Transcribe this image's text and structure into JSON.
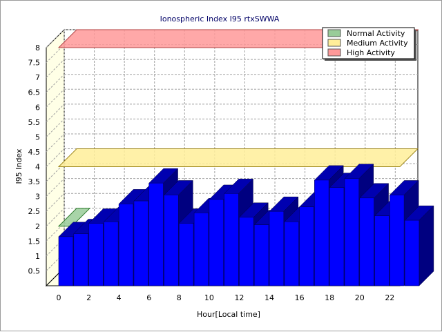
{
  "chart_data": {
    "type": "bar",
    "title": "Ionospheric Index I95 rtxSWWA",
    "xlabel": "Hour[Local time]",
    "ylabel": "I95 Index",
    "x": [
      0,
      1,
      2,
      3,
      4,
      5,
      6,
      7,
      8,
      9,
      10,
      11,
      12,
      13,
      14,
      15,
      16,
      17,
      18,
      19,
      20,
      21,
      22,
      23
    ],
    "values": [
      1.65,
      1.75,
      2.1,
      2.15,
      2.75,
      2.85,
      3.45,
      3.05,
      2.1,
      2.45,
      2.9,
      3.1,
      2.3,
      2.05,
      2.5,
      2.15,
      2.65,
      3.55,
      3.3,
      3.6,
      2.95,
      2.35,
      3.05,
      2.2
    ],
    "ylim": [
      0,
      8
    ],
    "yticks": [
      "0.5",
      "1",
      "1.5",
      "2",
      "2.5",
      "3",
      "3.5",
      "4",
      "4.5",
      "5",
      "5.5",
      "6",
      "6.5",
      "7",
      "7.5",
      "8"
    ],
    "xticks": [
      "0",
      "2",
      "4",
      "6",
      "8",
      "10",
      "12",
      "14",
      "16",
      "18",
      "20",
      "22"
    ],
    "bar_color": "#0000ff",
    "grid": true,
    "legend_position": "top-right",
    "bands": [
      {
        "name": "Normal Activity",
        "level": 2,
        "color": "#99cc99"
      },
      {
        "name": "Medium Activity",
        "level": 4,
        "color": "#ffee99"
      },
      {
        "name": "High Activity",
        "level": 8,
        "color": "#ff9999"
      }
    ]
  }
}
